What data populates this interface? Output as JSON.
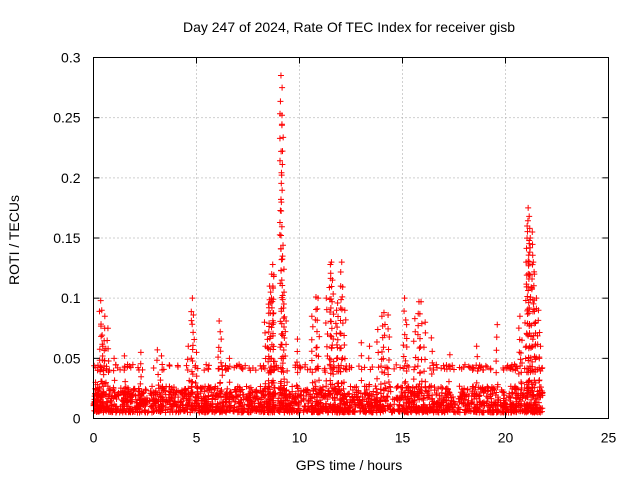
{
  "chart_data": {
    "type": "scatter",
    "title": "Day 247 of 2024, Rate Of TEC Index for receiver gisb",
    "xlabel": "GPS time / hours",
    "ylabel": "ROTI / TECUs",
    "xlim": [
      0,
      25
    ],
    "ylim": [
      0,
      0.3
    ],
    "x_ticks": [
      "0",
      "5",
      "10",
      "15",
      "20",
      "25"
    ],
    "y_ticks": [
      "0",
      "0.05",
      "0.1",
      "0.15",
      "0.2",
      "0.25",
      "0.3"
    ],
    "grid": true,
    "marker": "plus",
    "series_color": "#ff0000",
    "data_x_range": [
      0,
      21.8
    ],
    "baseline_range": [
      0.005,
      0.03
    ],
    "points": [
      [
        0.1,
        0.03
      ],
      [
        0.2,
        0.04
      ],
      [
        0.35,
        0.098
      ],
      [
        0.4,
        0.09
      ],
      [
        0.45,
        0.06
      ],
      [
        0.55,
        0.085
      ],
      [
        0.6,
        0.058
      ],
      [
        0.7,
        0.075
      ],
      [
        1.0,
        0.05
      ],
      [
        1.5,
        0.052
      ],
      [
        2.3,
        0.055
      ],
      [
        3.1,
        0.057
      ],
      [
        3.3,
        0.052
      ],
      [
        4.6,
        0.06
      ],
      [
        4.8,
        0.1
      ],
      [
        4.85,
        0.086
      ],
      [
        5.0,
        0.055
      ],
      [
        6.1,
        0.081
      ],
      [
        6.2,
        0.066
      ],
      [
        6.6,
        0.05
      ],
      [
        8.3,
        0.08
      ],
      [
        8.5,
        0.095
      ],
      [
        8.55,
        0.11
      ],
      [
        8.6,
        0.105
      ],
      [
        8.65,
        0.12
      ],
      [
        8.7,
        0.128
      ],
      [
        8.75,
        0.118
      ],
      [
        9.1,
        0.285
      ],
      [
        9.15,
        0.252
      ],
      [
        9.2,
        0.144
      ],
      [
        9.25,
        0.105
      ],
      [
        9.35,
        0.081
      ],
      [
        9.9,
        0.066
      ],
      [
        10.6,
        0.085
      ],
      [
        10.8,
        0.101
      ],
      [
        10.9,
        0.1
      ],
      [
        11.3,
        0.1
      ],
      [
        11.5,
        0.128
      ],
      [
        11.55,
        0.13
      ],
      [
        11.6,
        0.115
      ],
      [
        11.8,
        0.09
      ],
      [
        11.85,
        0.096
      ],
      [
        12.0,
        0.11
      ],
      [
        12.05,
        0.13
      ],
      [
        12.2,
        0.09
      ],
      [
        13.0,
        0.063
      ],
      [
        13.4,
        0.06
      ],
      [
        13.8,
        0.074
      ],
      [
        14.0,
        0.085
      ],
      [
        14.1,
        0.088
      ],
      [
        14.3,
        0.086
      ],
      [
        15.1,
        0.1
      ],
      [
        15.2,
        0.078
      ],
      [
        15.6,
        0.083
      ],
      [
        15.8,
        0.097
      ],
      [
        15.9,
        0.097
      ],
      [
        16.1,
        0.08
      ],
      [
        16.4,
        0.067
      ],
      [
        17.3,
        0.053
      ],
      [
        18.6,
        0.06
      ],
      [
        19.6,
        0.078
      ],
      [
        20.7,
        0.085
      ],
      [
        20.8,
        0.065
      ],
      [
        21.0,
        0.13
      ],
      [
        21.05,
        0.16
      ],
      [
        21.1,
        0.175
      ],
      [
        21.15,
        0.168
      ],
      [
        21.2,
        0.15
      ],
      [
        21.3,
        0.155
      ],
      [
        21.35,
        0.13
      ],
      [
        21.4,
        0.12
      ],
      [
        21.5,
        0.1
      ],
      [
        21.6,
        0.09
      ],
      [
        21.7,
        0.06
      ]
    ]
  }
}
